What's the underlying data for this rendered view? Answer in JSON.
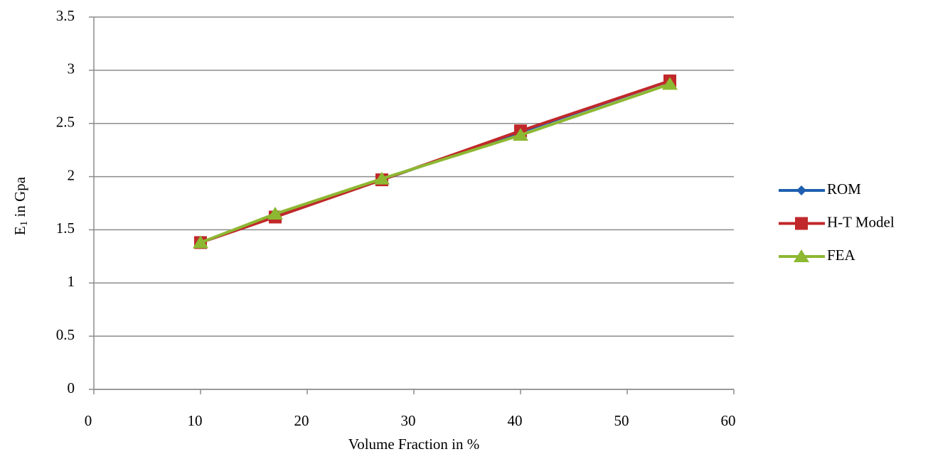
{
  "chart_data": {
    "type": "line",
    "x_label": "Volume Fraction in %",
    "y_label": [
      "E",
      "1",
      " in Gpa"
    ],
    "x": [
      10,
      17,
      27,
      40,
      54
    ],
    "series": [
      {
        "name": "ROM",
        "color": "#1f5fb0",
        "marker": "diamond",
        "values": [
          1.38,
          1.63,
          1.97,
          2.42,
          2.9
        ]
      },
      {
        "name": "H-T Model",
        "color": "#c0282a",
        "marker": "square",
        "values": [
          1.38,
          1.62,
          1.97,
          2.43,
          2.9
        ]
      },
      {
        "name": "FEA",
        "color": "#8db832",
        "marker": "triangle",
        "values": [
          1.38,
          1.65,
          1.98,
          2.39,
          2.87
        ]
      }
    ],
    "xlim": [
      0,
      60
    ],
    "xticks": [
      0,
      10,
      20,
      30,
      40,
      50,
      60
    ],
    "ylim": [
      0,
      3.5
    ],
    "yticks": [
      0,
      0.5,
      1,
      1.5,
      2,
      2.5,
      3,
      3.5
    ],
    "grid": true,
    "legend": "right"
  }
}
